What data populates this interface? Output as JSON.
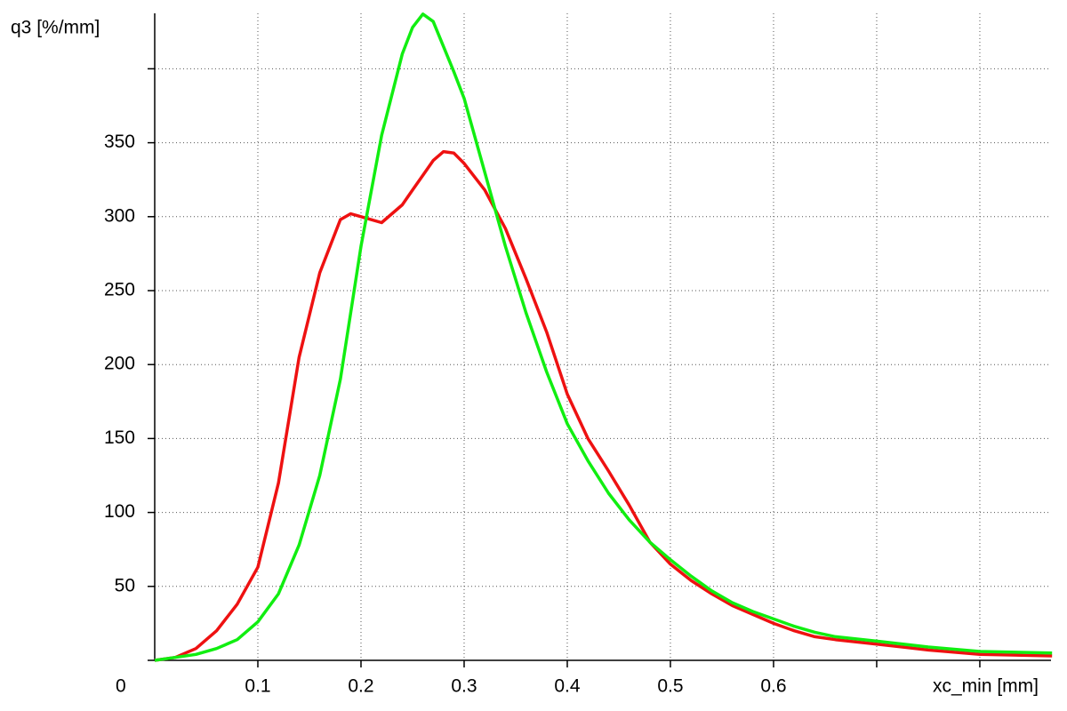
{
  "chart_data": {
    "type": "line",
    "y_label": "q3 [%/mm]",
    "x_label": "xc_min [mm]",
    "x": [
      0,
      0.02,
      0.04,
      0.06,
      0.08,
      0.1,
      0.12,
      0.14,
      0.16,
      0.18,
      0.19,
      0.2,
      0.22,
      0.24,
      0.25,
      0.26,
      0.27,
      0.28,
      0.29,
      0.3,
      0.32,
      0.34,
      0.36,
      0.38,
      0.4,
      0.42,
      0.44,
      0.46,
      0.48,
      0.5,
      0.52,
      0.54,
      0.56,
      0.58,
      0.6,
      0.62,
      0.64,
      0.66,
      0.7,
      0.75,
      0.8,
      0.87
    ],
    "series": [
      {
        "color": "#ee1111",
        "values": [
          0,
          2,
          8,
          20,
          38,
          63,
          120,
          205,
          262,
          298,
          302,
          300,
          296,
          308,
          318,
          328,
          338,
          344,
          343,
          336,
          318,
          292,
          258,
          222,
          180,
          150,
          128,
          105,
          80,
          65,
          54,
          45,
          37,
          31,
          25,
          20,
          16,
          14,
          11,
          7,
          4,
          3
        ]
      },
      {
        "color": "#11ee11",
        "values": [
          0,
          2,
          4,
          8,
          14,
          26,
          45,
          78,
          125,
          190,
          235,
          280,
          355,
          410,
          428,
          437,
          432,
          415,
          398,
          380,
          330,
          280,
          235,
          195,
          160,
          135,
          113,
          95,
          80,
          68,
          57,
          47,
          39,
          33,
          28,
          23,
          19,
          16,
          13,
          9,
          6,
          5
        ]
      }
    ],
    "xlim": [
      0,
      0.869
    ],
    "ylim": [
      0,
      437.5
    ],
    "xticks": [
      0.1,
      0.2,
      0.3,
      0.4,
      0.5,
      0.6
    ],
    "xticks_unlabeled": [
      0.7,
      0.8
    ],
    "yticks": [
      0,
      50,
      100,
      150,
      200,
      250,
      300,
      350
    ],
    "yticks_unlabeled": [
      400
    ],
    "grid": true
  }
}
